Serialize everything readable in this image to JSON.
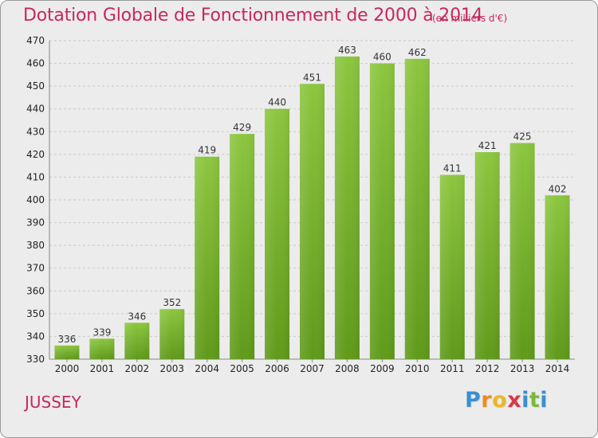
{
  "chart_data": {
    "type": "bar",
    "title": "Dotation Globale de Fonctionnement de 2000 à 2014",
    "subtitle": "(en milliers d'€)",
    "categories": [
      "2000",
      "2001",
      "2002",
      "2003",
      "2004",
      "2005",
      "2006",
      "2007",
      "2008",
      "2009",
      "2010",
      "2011",
      "2012",
      "2013",
      "2014"
    ],
    "values": [
      336,
      339,
      346,
      352,
      419,
      429,
      440,
      451,
      463,
      460,
      462,
      411,
      421,
      425,
      402
    ],
    "yticks": [
      330,
      340,
      350,
      360,
      370,
      380,
      390,
      400,
      410,
      420,
      430,
      440,
      450,
      460,
      470
    ],
    "ylim": [
      330,
      470
    ],
    "grid": true,
    "bar_color": "#8cc63f",
    "bar_color_dark": "#5f9a1a"
  },
  "footer": {
    "city": "JUSSEY",
    "logo_letters": [
      "P",
      "r",
      "o",
      "x",
      "i",
      "t",
      "i"
    ],
    "logo_colors": [
      "#3a8fd0",
      "#f08a1c",
      "#e9b825",
      "#d6384c",
      "#3a8fd0",
      "#7bb83a",
      "#3a8fd0"
    ]
  }
}
